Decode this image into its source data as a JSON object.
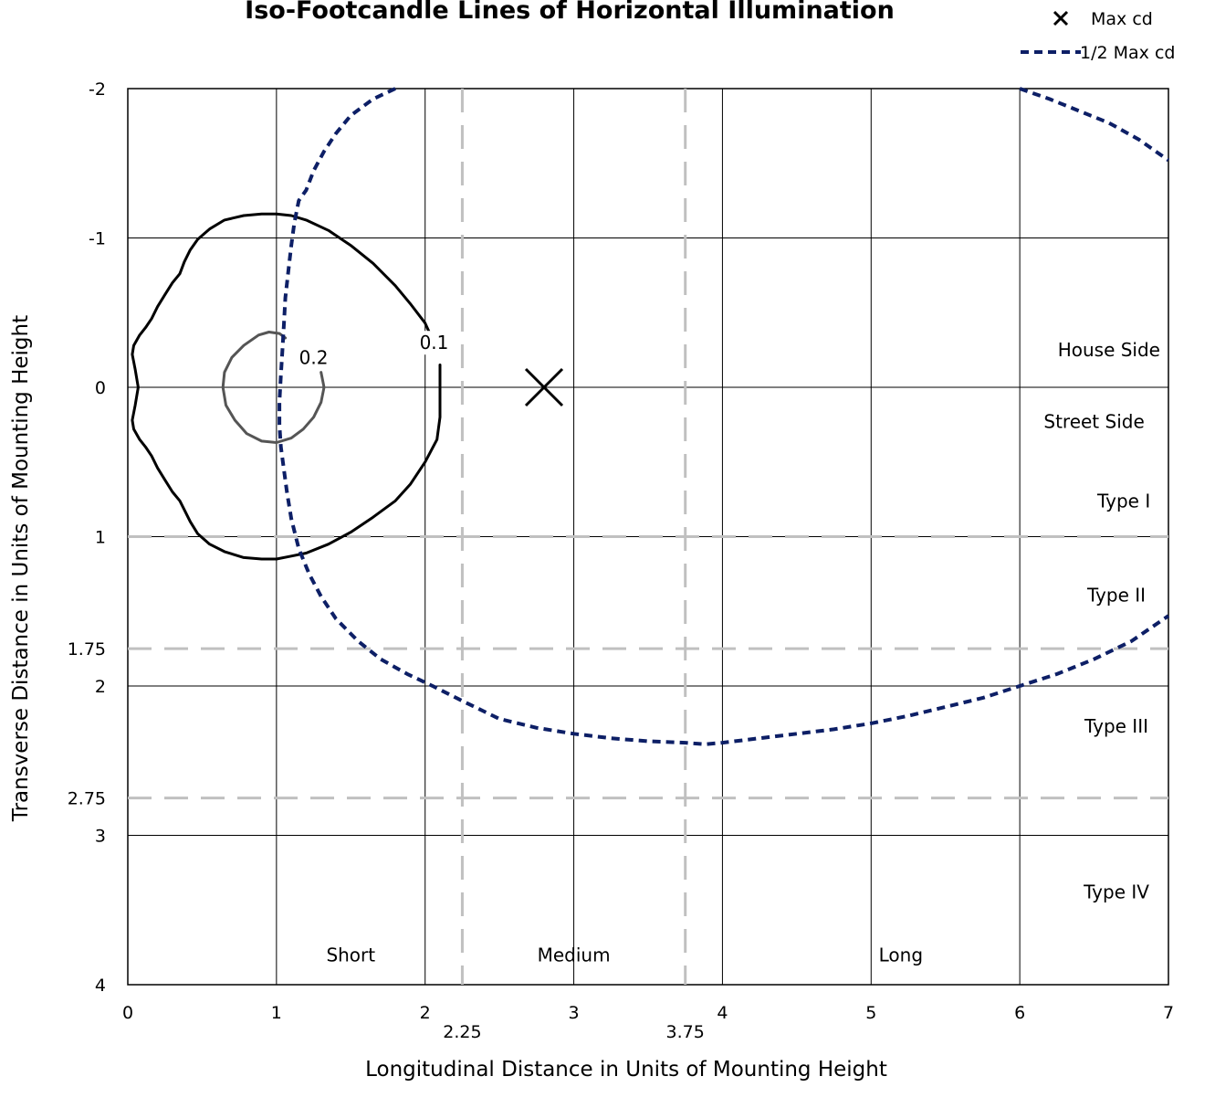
{
  "chart_data": {
    "type": "line",
    "title": "Iso-Footcandle Lines of Horizontal Illumination",
    "xlabel": "Longitudinal Distance in Units of Mounting Height",
    "ylabel": "Transverse Distance in Units of Mounting Height",
    "xlim": [
      0,
      7
    ],
    "ylim": [
      -2,
      4
    ],
    "y_inverted": true,
    "grid": true,
    "x_ticks": [
      {
        "value": 0,
        "label": "0"
      },
      {
        "value": 1,
        "label": "1"
      },
      {
        "value": 2,
        "label": "2"
      },
      {
        "value": 3,
        "label": "3"
      },
      {
        "value": 4,
        "label": "4"
      },
      {
        "value": 5,
        "label": "5"
      },
      {
        "value": 6,
        "label": "6"
      },
      {
        "value": 7,
        "label": "7"
      }
    ],
    "x_extra_ticks": [
      {
        "value": 2.25,
        "label": "2.25"
      },
      {
        "value": 3.75,
        "label": "3.75"
      }
    ],
    "y_ticks": [
      {
        "value": -2,
        "label": "-2"
      },
      {
        "value": -1,
        "label": "-1"
      },
      {
        "value": 0,
        "label": "0"
      },
      {
        "value": 1,
        "label": "1"
      },
      {
        "value": 1.75,
        "label": "1.75"
      },
      {
        "value": 2,
        "label": "2"
      },
      {
        "value": 2.75,
        "label": "2.75"
      },
      {
        "value": 3,
        "label": "3"
      },
      {
        "value": 4,
        "label": "4"
      }
    ],
    "reference_lines": [
      {
        "axis": "x",
        "value": 2.25
      },
      {
        "axis": "x",
        "value": 3.75
      },
      {
        "axis": "y",
        "value": 1
      },
      {
        "axis": "y",
        "value": 1.75
      },
      {
        "axis": "y",
        "value": 2.75
      }
    ],
    "region_labels": [
      {
        "text": "House Side",
        "x": 6.6,
        "y": -0.25
      },
      {
        "text": "Street Side",
        "x": 6.5,
        "y": 0.23
      },
      {
        "text": "Type I",
        "x": 6.7,
        "y": 0.76
      },
      {
        "text": "Type II",
        "x": 6.65,
        "y": 1.39
      },
      {
        "text": "Type III",
        "x": 6.65,
        "y": 2.27
      },
      {
        "text": "Type IV",
        "x": 6.65,
        "y": 3.38
      },
      {
        "text": "Short",
        "x": 1.5,
        "y": 3.8
      },
      {
        "text": "Medium",
        "x": 3.0,
        "y": 3.8
      },
      {
        "text": "Long",
        "x": 5.2,
        "y": 3.8
      }
    ],
    "series": [
      {
        "label": "0.1",
        "label_x": 2.06,
        "label_y": -0.28,
        "color": "#000000",
        "closed": false,
        "x": [
          2.1,
          2.1,
          2.08,
          2.0,
          1.9,
          1.8,
          1.65,
          1.5,
          1.35,
          1.2,
          1.1,
          1.0,
          0.9,
          0.78,
          0.65,
          0.55,
          0.47,
          0.42,
          0.38,
          0.35,
          0.3,
          0.25,
          0.2,
          0.16,
          0.12,
          0.08,
          0.04,
          0.03,
          0.05,
          0.07,
          0.05,
          0.03,
          0.04,
          0.08,
          0.12,
          0.16,
          0.2,
          0.25,
          0.3,
          0.35,
          0.38,
          0.42,
          0.47,
          0.55,
          0.65,
          0.78,
          0.9,
          1.0,
          1.1,
          1.2,
          1.35,
          1.5,
          1.65,
          1.8,
          1.9,
          2.0,
          2.05
        ],
        "y": [
          -0.15,
          0.2,
          0.35,
          0.5,
          0.65,
          0.76,
          0.87,
          0.97,
          1.05,
          1.11,
          1.13,
          1.15,
          1.15,
          1.14,
          1.1,
          1.05,
          0.98,
          0.9,
          0.82,
          0.76,
          0.7,
          0.62,
          0.54,
          0.46,
          0.4,
          0.35,
          0.28,
          0.22,
          0.12,
          0.0,
          -0.12,
          -0.22,
          -0.28,
          -0.35,
          -0.4,
          -0.46,
          -0.54,
          -0.62,
          -0.7,
          -0.76,
          -0.84,
          -0.92,
          -0.99,
          -1.06,
          -1.12,
          -1.15,
          -1.16,
          -1.16,
          -1.15,
          -1.12,
          -1.05,
          -0.95,
          -0.83,
          -0.68,
          -0.56,
          -0.43,
          -0.32
        ]
      },
      {
        "label": "0.2",
        "label_x": 1.25,
        "label_y": -0.18,
        "color": "#555555",
        "closed": false,
        "x": [
          1.3,
          1.32,
          1.3,
          1.25,
          1.18,
          1.1,
          1.0,
          0.9,
          0.8,
          0.72,
          0.66,
          0.64,
          0.65,
          0.7,
          0.78,
          0.88,
          0.95,
          1.02,
          1.06
        ],
        "y": [
          -0.1,
          0.0,
          0.1,
          0.2,
          0.28,
          0.34,
          0.37,
          0.36,
          0.31,
          0.22,
          0.12,
          0.0,
          -0.1,
          -0.2,
          -0.28,
          -0.35,
          -0.37,
          -0.36,
          -0.33
        ]
      },
      {
        "name": "1/2 Max cd",
        "color": "#0d1f66",
        "dashed": true,
        "closed": false,
        "x": [
          1.8,
          1.65,
          1.5,
          1.4,
          1.32,
          1.25,
          1.2,
          1.15,
          1.12,
          1.1,
          1.08,
          1.06,
          1.05,
          1.04,
          1.03,
          1.02,
          1.02,
          1.03,
          1.05,
          1.07,
          1.1,
          1.15,
          1.22,
          1.3,
          1.4,
          1.55,
          1.7,
          1.88,
          2.05,
          2.25,
          2.5,
          2.75,
          3.0,
          3.25,
          3.5,
          3.75,
          3.88,
          4.0,
          4.25,
          4.5,
          4.75,
          5.0,
          5.25,
          5.5,
          5.75,
          6.0,
          6.25,
          6.5,
          6.75,
          7.0
        ],
        "y": [
          -2.0,
          -1.93,
          -1.82,
          -1.7,
          -1.58,
          -1.45,
          -1.32,
          -1.25,
          -1.1,
          -0.95,
          -0.78,
          -0.6,
          -0.42,
          -0.25,
          -0.08,
          0.1,
          0.25,
          0.4,
          0.55,
          0.7,
          0.88,
          1.08,
          1.25,
          1.4,
          1.55,
          1.7,
          1.82,
          1.92,
          2.0,
          2.1,
          2.22,
          2.28,
          2.32,
          2.35,
          2.37,
          2.38,
          2.39,
          2.38,
          2.35,
          2.32,
          2.29,
          2.25,
          2.2,
          2.14,
          2.08,
          2.0,
          1.92,
          1.82,
          1.7,
          1.53
        ]
      },
      {
        "name": "1/2 Max cd",
        "color": "#0d1f66",
        "dashed": true,
        "closed": false,
        "x": [
          6.0,
          6.2,
          6.4,
          6.6,
          6.8,
          7.0
        ],
        "y": [
          -2.0,
          -1.93,
          -1.85,
          -1.77,
          -1.66,
          -1.52
        ]
      }
    ],
    "markers": [
      {
        "name": "Max cd",
        "symbol": "x",
        "x": 2.8,
        "y": 0.0
      }
    ],
    "legend": {
      "position": "top-right",
      "entries": [
        {
          "label": "Max cd",
          "symbol": "x"
        },
        {
          "label": "1/2 Max cd",
          "symbol": "dashed-line"
        }
      ]
    },
    "colors": {
      "half_max": "#0d1f66",
      "reference": "#c0c0c0",
      "grid": "#000000"
    }
  }
}
